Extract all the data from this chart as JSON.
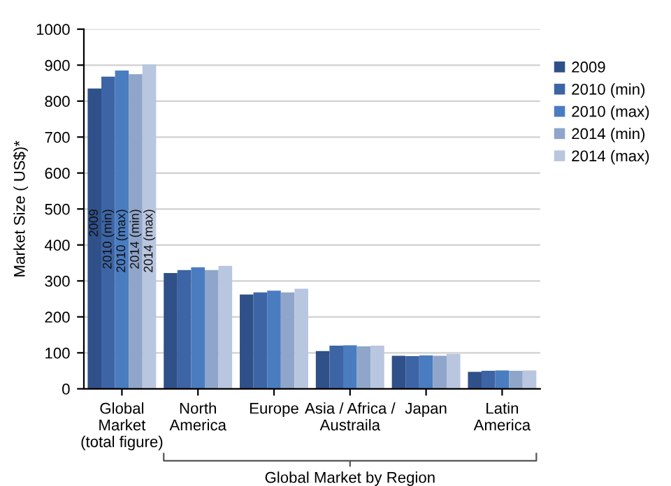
{
  "chart_data": {
    "type": "bar",
    "categories": [
      "Global\nMarket\n(total figure)",
      "North\nAmerica",
      "Europe",
      "Asia / Africa /\nAustraila",
      "Japan",
      "Latin\nAmerica"
    ],
    "series": [
      {
        "name": "2009",
        "color": "#2f5089",
        "values": [
          835,
          322,
          262,
          105,
          92,
          47
        ]
      },
      {
        "name": "2010 (min)",
        "color": "#3d64a4",
        "values": [
          868,
          330,
          268,
          120,
          91,
          50
        ]
      },
      {
        "name": "2010 (max)",
        "color": "#4a7cc0",
        "values": [
          885,
          338,
          273,
          121,
          93,
          51
        ]
      },
      {
        "name": "2014 (min)",
        "color": "#8fa5c9",
        "values": [
          875,
          330,
          268,
          118,
          92,
          50
        ]
      },
      {
        "name": "2014 (max)",
        "color": "#b9c6df",
        "values": [
          902,
          342,
          278,
          120,
          97,
          51
        ]
      }
    ],
    "ylabel": "Market Size ( US$)*",
    "xlabel": "Global Market by Region",
    "annotations": [
      "2009",
      "2010 (min)",
      "2010 (max)",
      "2014 (min)",
      "2014 (max)"
    ],
    "ylim": [
      0,
      1000
    ],
    "yticks": [
      0,
      100,
      200,
      300,
      400,
      500,
      600,
      700,
      800,
      900,
      1000
    ],
    "grid": "y",
    "legend": "top right"
  }
}
